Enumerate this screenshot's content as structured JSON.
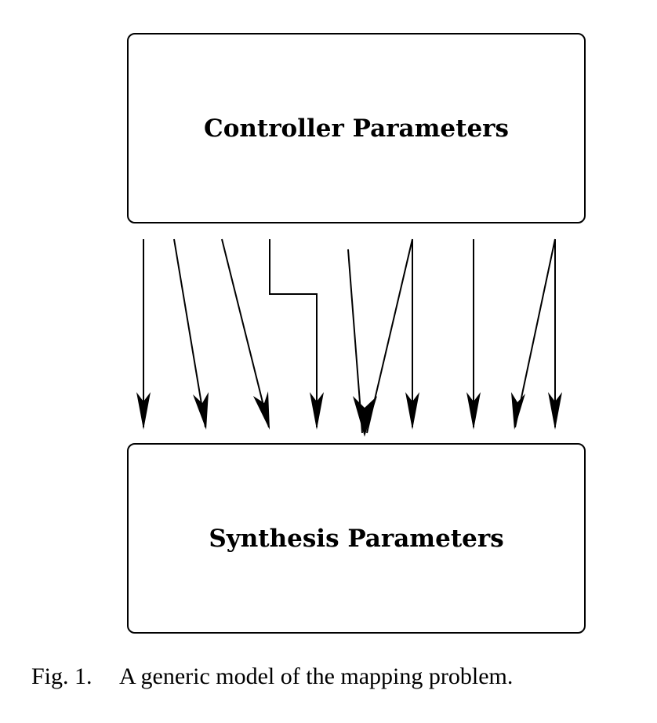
{
  "diagram": {
    "top_box": {
      "label": "Controller Parameters"
    },
    "bottom_box": {
      "label": "Synthesis Parameters"
    },
    "connections": [
      {
        "id": "c1",
        "kind": "one-to-one"
      },
      {
        "id": "c2",
        "kind": "one-to-one"
      },
      {
        "id": "c3",
        "kind": "one-to-one"
      },
      {
        "id": "c4",
        "kind": "elbow"
      },
      {
        "id": "c5",
        "kind": "many-to-one-left"
      },
      {
        "id": "c6",
        "kind": "many-to-one-right"
      },
      {
        "id": "c7",
        "kind": "one-to-one"
      },
      {
        "id": "c8",
        "kind": "one-to-one"
      },
      {
        "id": "c9",
        "kind": "one-to-many-left"
      },
      {
        "id": "c10",
        "kind": "one-to-many-right"
      }
    ],
    "colors": {
      "stroke": "#000000",
      "background": "#ffffff"
    }
  },
  "caption": {
    "number": "Fig. 1.",
    "text": "A generic model of the mapping problem."
  }
}
